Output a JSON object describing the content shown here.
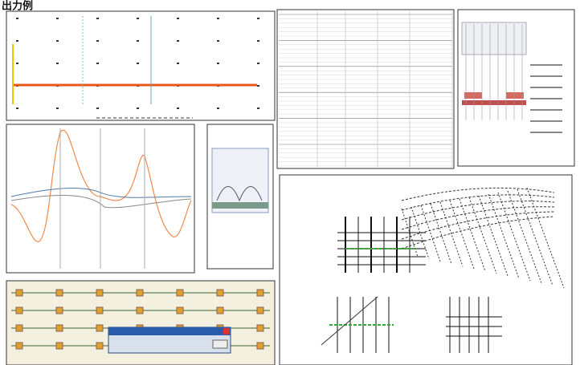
{
  "header": {
    "title": "出力例"
  }
}
